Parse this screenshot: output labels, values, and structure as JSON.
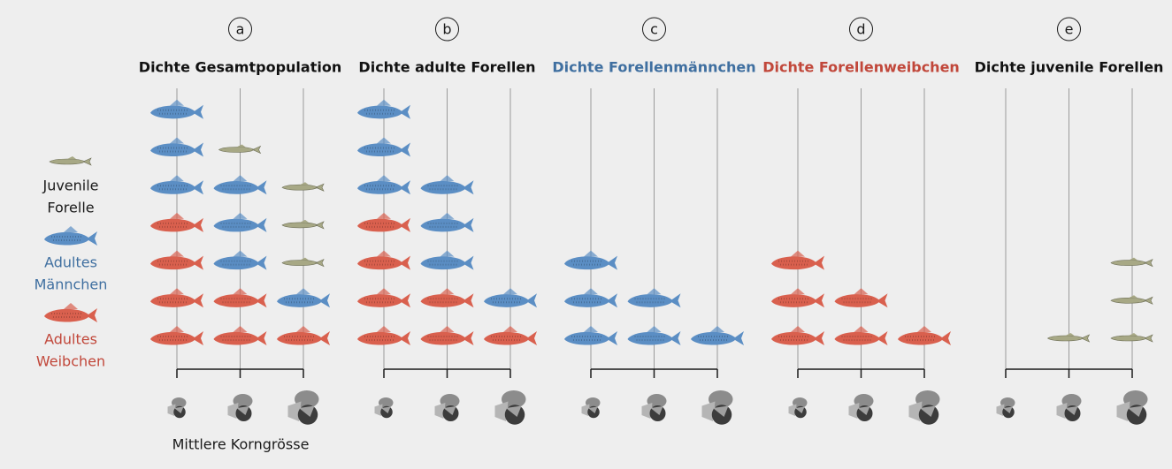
{
  "legend": [
    {
      "lines": [
        "Juvenile",
        "Forelle"
      ],
      "color": "#a7a885",
      "text_color": "#1a1a1a"
    },
    {
      "lines": [
        "Adultes",
        "Männchen"
      ],
      "color": "#5b8ec4",
      "text_color": "#3f6fa0"
    },
    {
      "lines": [
        "Adultes",
        "Weibchen"
      ],
      "color": "#d9604e",
      "text_color": "#c1473a"
    }
  ],
  "x_label": "Mittlere Korngrösse",
  "panels": [
    {
      "letter": "a",
      "title": "Dichte Gesamtpopulation",
      "title_color": "#111111",
      "columns": [
        [
          2,
          2,
          2,
          2,
          1,
          1,
          1
        ],
        [
          2,
          2,
          1,
          1,
          1,
          0
        ],
        [
          2,
          1,
          0,
          0,
          0
        ]
      ]
    },
    {
      "letter": "b",
      "title": "Dichte adulte Forellen",
      "title_color": "#111111",
      "columns": [
        [
          2,
          2,
          2,
          2,
          1,
          1,
          1
        ],
        [
          2,
          2,
          1,
          1,
          1
        ],
        [
          2,
          1
        ]
      ]
    },
    {
      "letter": "c",
      "title": "Dichte Forellenmännchen",
      "title_color": "#3f6fa0",
      "columns": [
        [
          1,
          1,
          1
        ],
        [
          1,
          1
        ],
        [
          1
        ]
      ]
    },
    {
      "letter": "d",
      "title": "Dichte Forellenweibchen",
      "title_color": "#c1473a",
      "columns": [
        [
          2,
          2,
          2
        ],
        [
          2,
          2
        ],
        [
          2
        ]
      ]
    },
    {
      "letter": "e",
      "title": "Dichte juvenile Forellen",
      "title_color": "#111111",
      "columns": [
        [],
        [
          0
        ],
        [
          0,
          0,
          0
        ]
      ]
    }
  ]
}
